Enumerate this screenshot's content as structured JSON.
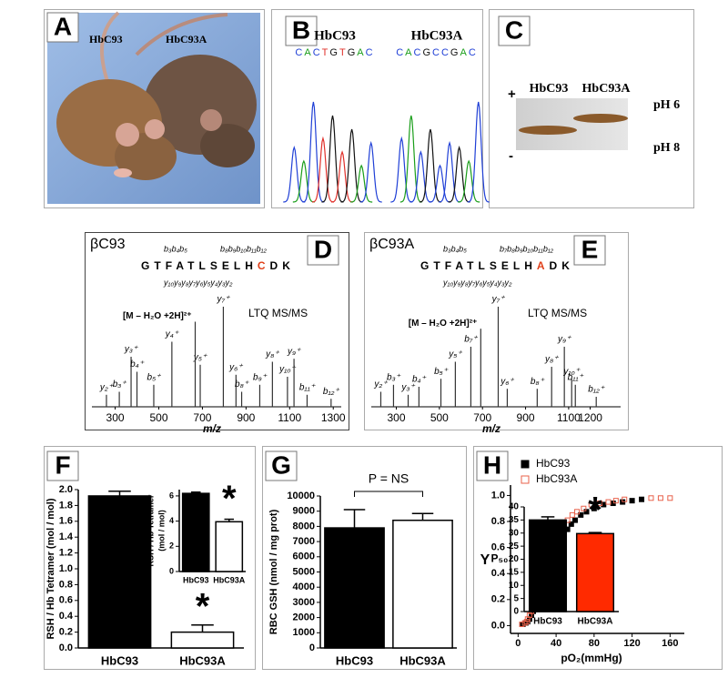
{
  "panels": {
    "A": {
      "label": "A",
      "mice": [
        "HbC93",
        "HbC93A"
      ]
    },
    "B": {
      "label": "B",
      "samples": [
        {
          "name": "HbC93",
          "sequence": "CACTGTGAC"
        },
        {
          "name": "HbC93A",
          "sequence": "CACGCCGAC"
        }
      ],
      "base_colors": {
        "A": "#1a9e1a",
        "C": "#1f3fd6",
        "G": "#111111",
        "T": "#e0302a"
      }
    },
    "C": {
      "label": "C",
      "samples": [
        "HbC93",
        "HbC93A"
      ],
      "poles": [
        "+",
        "-"
      ],
      "ph": [
        "pH 6",
        "pH 8"
      ]
    }
  },
  "chart_data": [
    {
      "type": "spectrum",
      "panel_label": "D",
      "title": "βC93",
      "peptide": "GTFATLSELHCDK",
      "highlight": 10,
      "highlight_color": "#e0401a",
      "b_ions": [
        "b₃b₄b₅",
        "b₈b₉b₁₀b₁₁b₁₂"
      ],
      "y_ions": "y₁₀y₉y₈y₇y₆y₅y₄y₃y₂",
      "instrument": "LTQ MS/MS",
      "xlabel": "m/z",
      "xlim": [
        160,
        1370
      ],
      "xticks": [
        300,
        500,
        700,
        900,
        1100,
        1300
      ],
      "peaks": [
        {
          "label": "y₂⁺",
          "mz": 260,
          "intensity": 12
        },
        {
          "label": "b₃⁺",
          "mz": 319,
          "intensity": 15
        },
        {
          "label": "y₃⁺",
          "mz": 373,
          "intensity": 50
        },
        {
          "label": "b₄⁺",
          "mz": 400,
          "intensity": 35
        },
        {
          "label": "b₅⁺",
          "mz": 477,
          "intensity": 22
        },
        {
          "label": "y₄⁺",
          "mz": 560,
          "intensity": 65
        },
        {
          "label": "y₅⁺",
          "mz": 690,
          "intensity": 42
        },
        {
          "label": "[M – H₂O +2H]²⁺",
          "mz": 667,
          "intensity": 85
        },
        {
          "label": "y₇⁺",
          "mz": 796,
          "intensity": 100
        },
        {
          "label": "y₆⁺",
          "mz": 854,
          "intensity": 32
        },
        {
          "label": "b₈⁺",
          "mz": 880,
          "intensity": 15
        },
        {
          "label": "b₉⁺",
          "mz": 963,
          "intensity": 22
        },
        {
          "label": "y₈⁺",
          "mz": 1021,
          "intensity": 45
        },
        {
          "label": "y₁₀⁺",
          "mz": 1090,
          "intensity": 30
        },
        {
          "label": "y₉⁺",
          "mz": 1120,
          "intensity": 48
        },
        {
          "label": "b₁₁⁺",
          "mz": 1180,
          "intensity": 12
        },
        {
          "label": "b₁₂⁺",
          "mz": 1290,
          "intensity": 8
        }
      ]
    },
    {
      "type": "spectrum",
      "panel_label": "E",
      "title": "βC93A",
      "peptide": "GTFATLSELHADK",
      "highlight": 10,
      "highlight_color": "#e0401a",
      "b_ions": [
        "b₃b₄b₅",
        "b₇b₈b₉b₁₀b₁₁b₁₂"
      ],
      "y_ions": "y₁₀y₉y₈y₇y₆y₅y₄y₃y₂",
      "instrument": "LTQ MS/MS",
      "xlabel": "m/z",
      "xlim": [
        150,
        1375
      ],
      "xticks": [
        300,
        500,
        700,
        900,
        1100,
        1200
      ],
      "peaks": [
        {
          "label": "y₂⁺",
          "mz": 228,
          "intensity": 15
        },
        {
          "label": "b₃⁺",
          "mz": 287,
          "intensity": 22
        },
        {
          "label": "y₃⁺",
          "mz": 355,
          "intensity": 12
        },
        {
          "label": "b₄⁺",
          "mz": 405,
          "intensity": 20
        },
        {
          "label": "b₅⁺",
          "mz": 507,
          "intensity": 28
        },
        {
          "label": "y₅⁺",
          "mz": 574,
          "intensity": 45
        },
        {
          "label": "b₇⁺",
          "mz": 646,
          "intensity": 60
        },
        {
          "label": "[M – H₂O +2H]²⁺",
          "mz": 692,
          "intensity": 78
        },
        {
          "label": "y₇⁺",
          "mz": 773,
          "intensity": 100
        },
        {
          "label": "y₆⁺",
          "mz": 815,
          "intensity": 18
        },
        {
          "label": "b₈⁺",
          "mz": 954,
          "intensity": 18
        },
        {
          "label": "y₈⁺",
          "mz": 1021,
          "intensity": 40
        },
        {
          "label": "y₉⁺",
          "mz": 1080,
          "intensity": 60
        },
        {
          "label": "y₁₀⁺",
          "mz": 1114,
          "intensity": 28
        },
        {
          "label": "b₁₁⁺",
          "mz": 1131,
          "intensity": 22
        },
        {
          "label": "b₁₂⁺",
          "mz": 1228,
          "intensity": 10
        }
      ]
    },
    {
      "type": "bar",
      "panel_label": "F",
      "ylabel": [
        "RSH / Hb Tetramer (mol / mol)"
      ],
      "categories": [
        "HbC93",
        "HbC93A"
      ],
      "values": [
        1.92,
        0.2
      ],
      "errors": [
        0.06,
        0.09
      ],
      "colors": [
        "#000000",
        "#ffffff"
      ],
      "ylim": [
        0,
        2.0
      ],
      "yticks": [
        {
          "value": 0,
          "label": "0.0"
        },
        {
          "value": 0.2,
          "label": "0.2"
        },
        {
          "value": 0.4,
          "label": "0.4"
        },
        {
          "value": 0.6,
          "label": "0.6"
        },
        {
          "value": 0.8,
          "label": "0.8"
        },
        {
          "value": 1,
          "label": "1.0"
        },
        {
          "value": 1.2,
          "label": "1.2"
        },
        {
          "value": 1.4,
          "label": "1.4"
        },
        {
          "value": 1.6,
          "label": "1.6"
        },
        {
          "value": 1.8,
          "label": "1.8"
        },
        {
          "value": 2,
          "label": "2.0"
        }
      ],
      "annotations": [
        "*"
      ],
      "inset": {
        "type": "bar",
        "ylabel": [
          "RSH / Hb Tetramer",
          "(mol / mol)"
        ],
        "categories": [
          "HbC93",
          "HbC93A"
        ],
        "values": [
          6.2,
          3.95
        ],
        "errors": [
          0.1,
          0.2
        ],
        "colors": [
          "#000000",
          "#ffffff"
        ],
        "ylim": [
          0,
          6.5
        ],
        "yticks": [
          0,
          2,
          4,
          6
        ],
        "annotations": [
          "*"
        ]
      }
    },
    {
      "type": "bar",
      "panel_label": "G",
      "ylabel": [
        "RBC GSH (nmol / mg prot)"
      ],
      "categories": [
        "HbC93",
        "HbC93A"
      ],
      "values": [
        7900,
        8400
      ],
      "errors": [
        1200,
        450
      ],
      "colors": [
        "#000000",
        "#ffffff"
      ],
      "ylim": [
        0,
        10000
      ],
      "yticks": [
        0,
        1000,
        2000,
        3000,
        4000,
        5000,
        6000,
        7000,
        8000,
        9000,
        10000
      ],
      "annotations": [
        "P = NS"
      ]
    },
    {
      "type": "scatter",
      "panel_label": "H",
      "ylabel": "Y",
      "xlabel": "pO₂(mmHg)",
      "legend": "upper left",
      "xlim": [
        -8,
        175
      ],
      "xticks": [
        0,
        40,
        80,
        120,
        160
      ],
      "ylim": [
        -0.06,
        1.08
      ],
      "yticks": [
        {
          "value": 0,
          "label": "0.0"
        },
        {
          "value": 0.2,
          "label": "0.2"
        },
        {
          "value": 0.4,
          "label": "0.4"
        },
        {
          "value": 0.6,
          "label": "0.6"
        },
        {
          "value": 0.8,
          "label": "0.8"
        },
        {
          "value": 1,
          "label": "1.0"
        }
      ],
      "series": [
        {
          "name": "HbC93",
          "color": "#000000",
          "filled": true,
          "x": [
            5,
            8,
            10,
            12,
            14,
            16,
            18,
            20,
            22,
            24,
            26,
            28,
            30,
            32,
            34,
            36,
            38,
            40,
            44,
            48,
            52,
            56,
            60,
            66,
            72,
            80,
            90,
            100,
            110,
            120,
            130
          ],
          "values": [
            0.01,
            0.02,
            0.03,
            0.05,
            0.08,
            0.11,
            0.14,
            0.18,
            0.22,
            0.26,
            0.31,
            0.35,
            0.4,
            0.44,
            0.48,
            0.52,
            0.56,
            0.59,
            0.65,
            0.7,
            0.74,
            0.78,
            0.81,
            0.85,
            0.875,
            0.9,
            0.93,
            0.94,
            0.95,
            0.96,
            0.97
          ]
        },
        {
          "name": "HbC93A",
          "color": "#e8604a",
          "filled": false,
          "x": [
            4,
            7,
            9,
            10,
            12,
            14,
            15,
            17,
            19,
            21,
            22,
            24,
            26,
            27,
            29,
            31,
            33,
            34,
            38,
            41,
            45,
            48,
            52,
            57,
            62,
            69,
            77,
            86,
            95,
            103,
            112,
            140,
            150,
            160
          ],
          "values": [
            0.01,
            0.02,
            0.03,
            0.05,
            0.08,
            0.11,
            0.14,
            0.18,
            0.22,
            0.26,
            0.31,
            0.35,
            0.4,
            0.44,
            0.48,
            0.52,
            0.56,
            0.59,
            0.65,
            0.7,
            0.74,
            0.78,
            0.81,
            0.85,
            0.875,
            0.9,
            0.93,
            0.94,
            0.95,
            0.96,
            0.97,
            0.98,
            0.98,
            0.98
          ]
        }
      ],
      "inset": {
        "type": "bar",
        "ylabel": [
          "P₅₀"
        ],
        "categories": [
          "HbC93",
          "HbC93A"
        ],
        "values": [
          35,
          29.8
        ],
        "errors": [
          1.2,
          0.4
        ],
        "colors": [
          "#000000",
          "#ff2a00"
        ],
        "ylim": [
          0,
          40
        ],
        "yticks": [
          0,
          5,
          10,
          15,
          20,
          25,
          30,
          35,
          40
        ],
        "annotations": [
          "*"
        ]
      }
    }
  ]
}
